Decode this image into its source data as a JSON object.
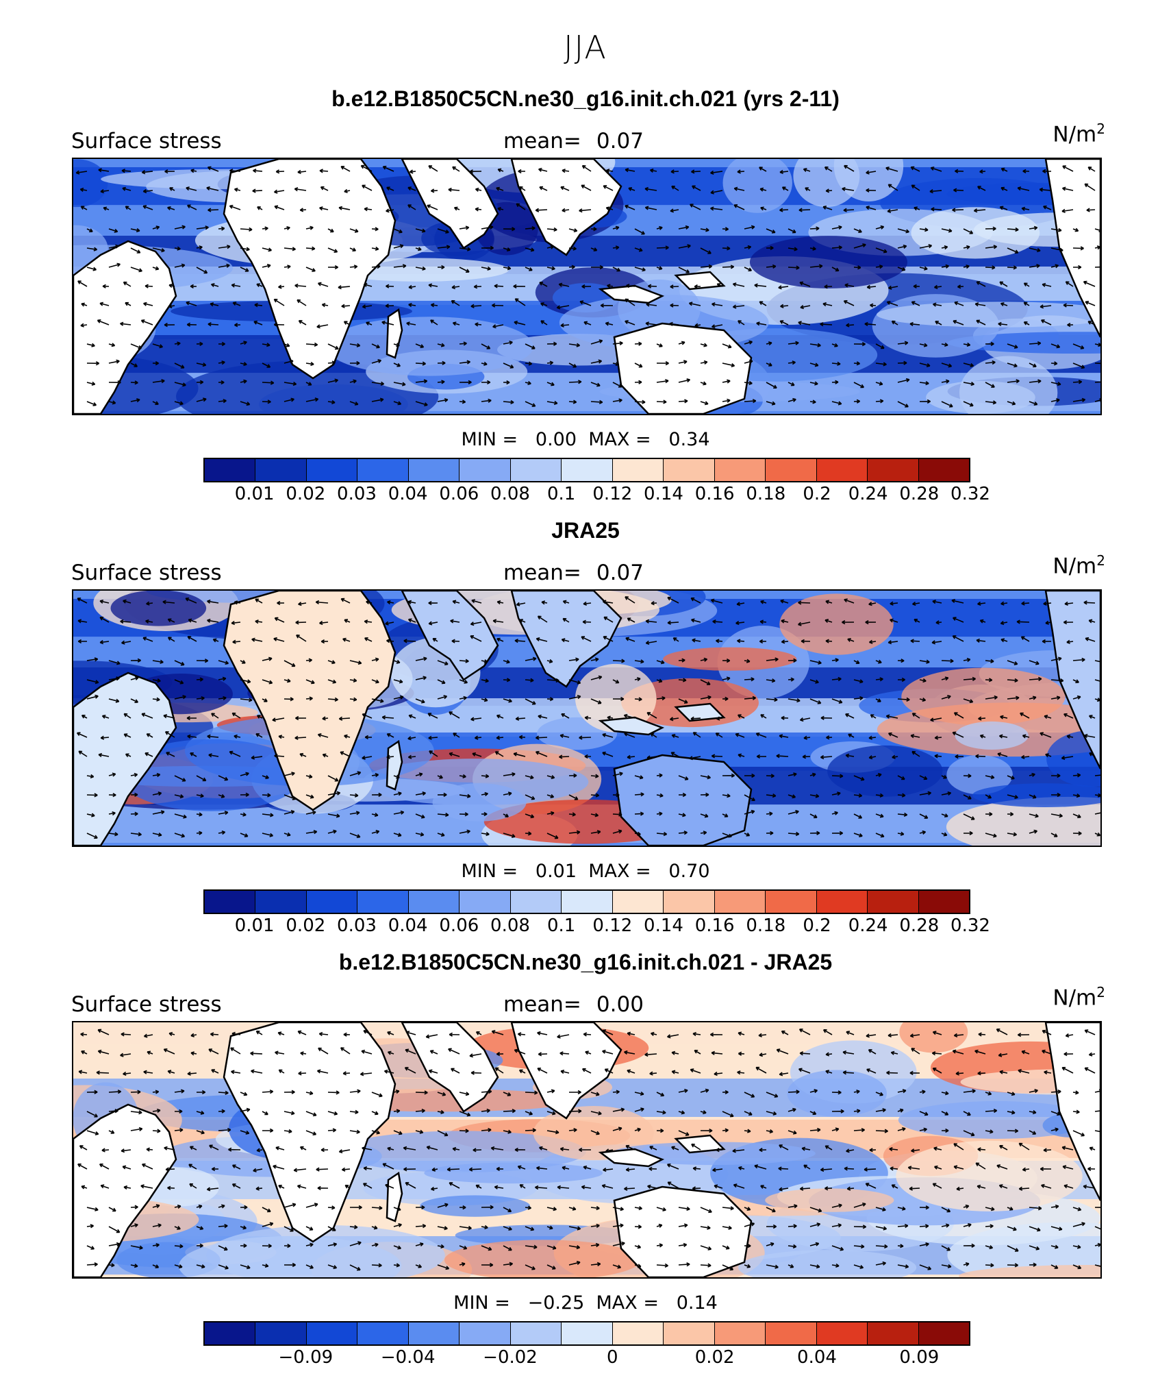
{
  "title": "JJA",
  "colors": {
    "land": "#ffffff",
    "coast": "#000000",
    "palette": [
      "#08168c",
      "#0a2fb0",
      "#1248d6",
      "#2c66e8",
      "#5a8cf0",
      "#86aaf5",
      "#b3cbf8",
      "#d9e8fb",
      "#fde6d2",
      "#fbc6a8",
      "#f79a78",
      "#f06a48",
      "#e03a22",
      "#b8200f",
      "#8a0b07"
    ]
  },
  "panels": [
    {
      "id": "model",
      "title": "b.e12.B1850C5CN.ne30_g16.init.ch.021 (yrs 2-11)",
      "left_label": "Surface stress",
      "mean_label": "mean=",
      "mean_value": "0.07",
      "units": "N/m",
      "units_exp": "2",
      "min_label": "MIN =",
      "min_value": "0.00",
      "max_label": "MAX =",
      "max_value": "0.34",
      "colorbar_labels": [
        "0.01",
        "0.02",
        "0.03",
        "0.04",
        "0.06",
        "0.08",
        "0.1",
        "0.12",
        "0.14",
        "0.16",
        "0.18",
        "0.2",
        "0.24",
        "0.28",
        "0.32"
      ],
      "field_type": "magnitude",
      "field_seed": 3
    },
    {
      "id": "obs",
      "title": "JRA25",
      "left_label": "Surface stress",
      "mean_label": "mean=",
      "mean_value": "0.07",
      "units": "N/m",
      "units_exp": "2",
      "min_label": "MIN =",
      "min_value": "0.01",
      "max_label": "MAX =",
      "max_value": "0.70",
      "colorbar_labels": [
        "0.01",
        "0.02",
        "0.03",
        "0.04",
        "0.06",
        "0.08",
        "0.1",
        "0.12",
        "0.14",
        "0.16",
        "0.18",
        "0.2",
        "0.24",
        "0.28",
        "0.32"
      ],
      "field_type": "magnitude",
      "field_seed": 7
    },
    {
      "id": "diff",
      "title": "b.e12.B1850C5CN.ne30_g16.init.ch.021 - JRA25",
      "left_label": "Surface stress",
      "mean_label": "mean=",
      "mean_value": "0.00",
      "units": "N/m",
      "units_exp": "2",
      "min_label": "MIN =",
      "min_value": "−0.25",
      "max_label": "MAX =",
      "max_value": "0.14",
      "colorbar_labels": [
        "",
        "−0.09",
        "",
        "−0.04",
        "",
        "−0.02",
        "",
        "0",
        "",
        "0.02",
        "",
        "0.04",
        "",
        "0.09"
      ],
      "field_type": "difference",
      "field_seed": 11
    }
  ]
}
